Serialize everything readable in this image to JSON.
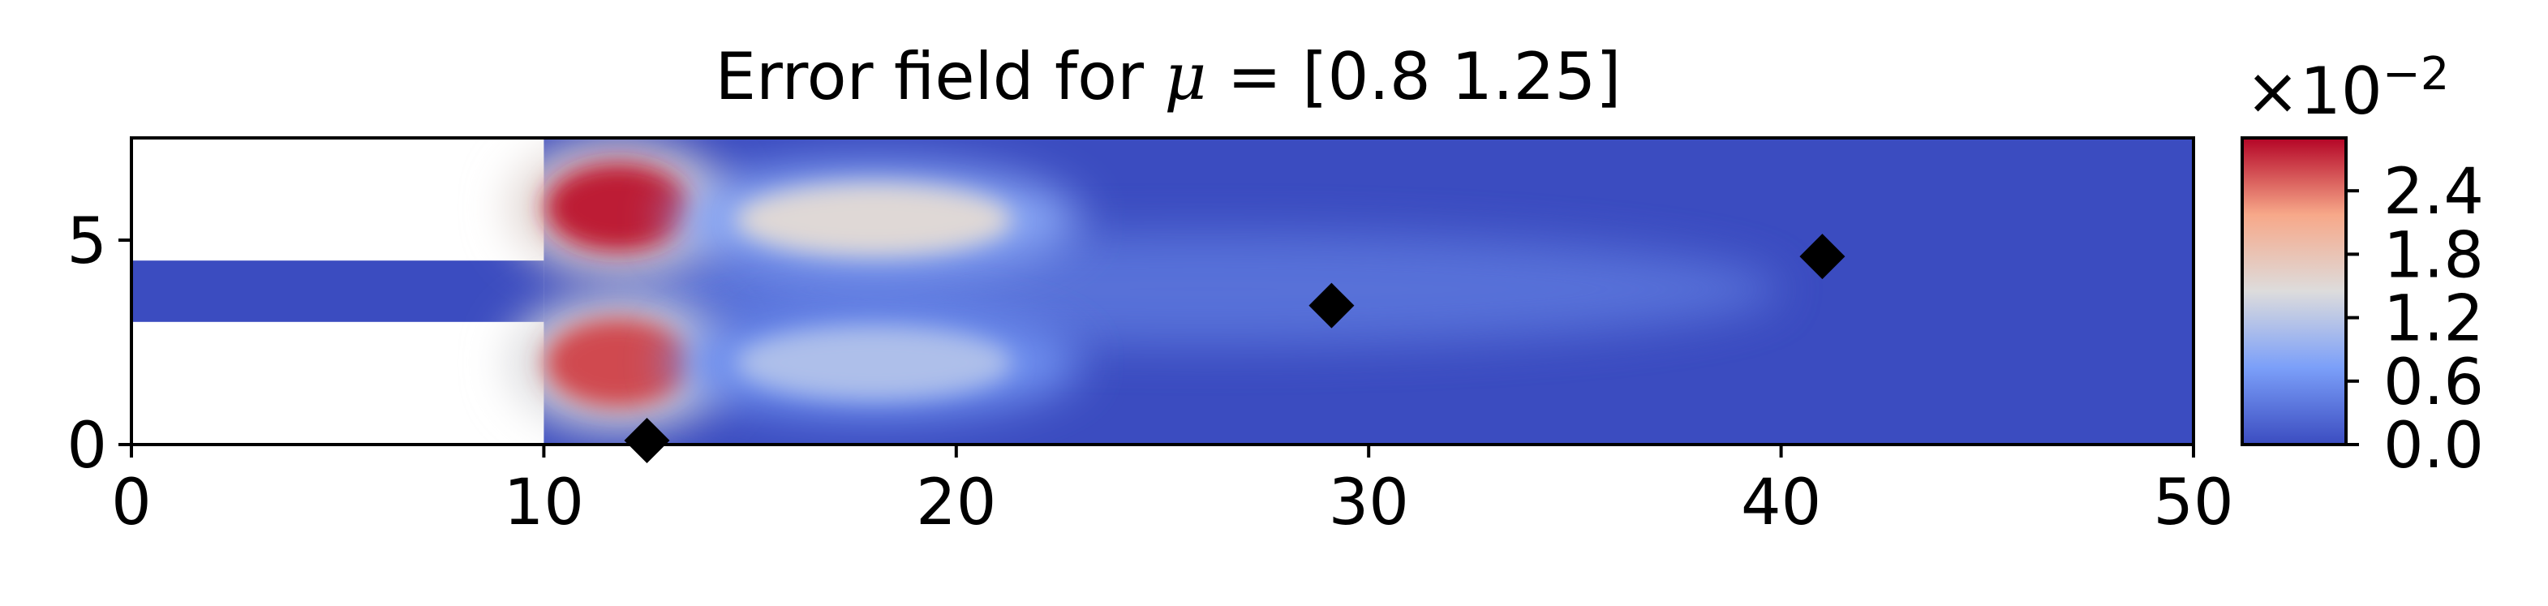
{
  "chart_data": {
    "type": "heatmap",
    "title": "Error field for μ = [0.8  1.25]",
    "title_parts": {
      "prefix": "Error field for ",
      "symbol": "μ",
      "suffix": " = [0.8  1.25]"
    },
    "xlabel": "",
    "ylabel": "",
    "xlim": [
      0,
      50
    ],
    "ylim": [
      0,
      7.5
    ],
    "x_ticks": [
      0,
      10,
      20,
      30,
      40,
      50
    ],
    "x_tick_labels": [
      "0",
      "10",
      "20",
      "30",
      "40",
      "50"
    ],
    "y_ticks": [
      0,
      5
    ],
    "y_tick_labels": [
      "0",
      "5"
    ],
    "colormap": "coolwarm",
    "domain": {
      "inlet_channel": {
        "x": [
          0,
          10
        ],
        "y": [
          3,
          4.5
        ]
      },
      "main_chamber": {
        "x": [
          10,
          50
        ],
        "y": [
          0,
          7.5
        ]
      }
    },
    "error_hotspots": [
      {
        "x": 11.8,
        "y": 5.8,
        "value": 0.028
      },
      {
        "x": 11.8,
        "y": 2.0,
        "value": 0.026
      },
      {
        "x": 18.0,
        "y": 5.5,
        "value": 0.015
      },
      {
        "x": 18.0,
        "y": 2.0,
        "value": 0.011
      }
    ],
    "markers": [
      {
        "shape": "diamond",
        "x": 12.5,
        "y": 0.1
      },
      {
        "shape": "diamond",
        "x": 29.1,
        "y": 3.4
      },
      {
        "shape": "diamond",
        "x": 41.0,
        "y": 4.6
      }
    ],
    "colorbar": {
      "range": [
        0,
        0.029
      ],
      "ticks": [
        0,
        0.006,
        0.012,
        0.018,
        0.024
      ],
      "tick_labels": [
        "0.0",
        "0.6",
        "1.2",
        "1.8",
        "2.4"
      ],
      "multiplier_base": "×10",
      "multiplier_exponent": "−2"
    }
  },
  "colors": {
    "low": "#3b4cc0",
    "low_mid": "#7b9ff9",
    "mid": "#dddcdc",
    "high_mid": "#f7a889",
    "high": "#b40426",
    "marker": "#000000",
    "axis": "#000000"
  }
}
